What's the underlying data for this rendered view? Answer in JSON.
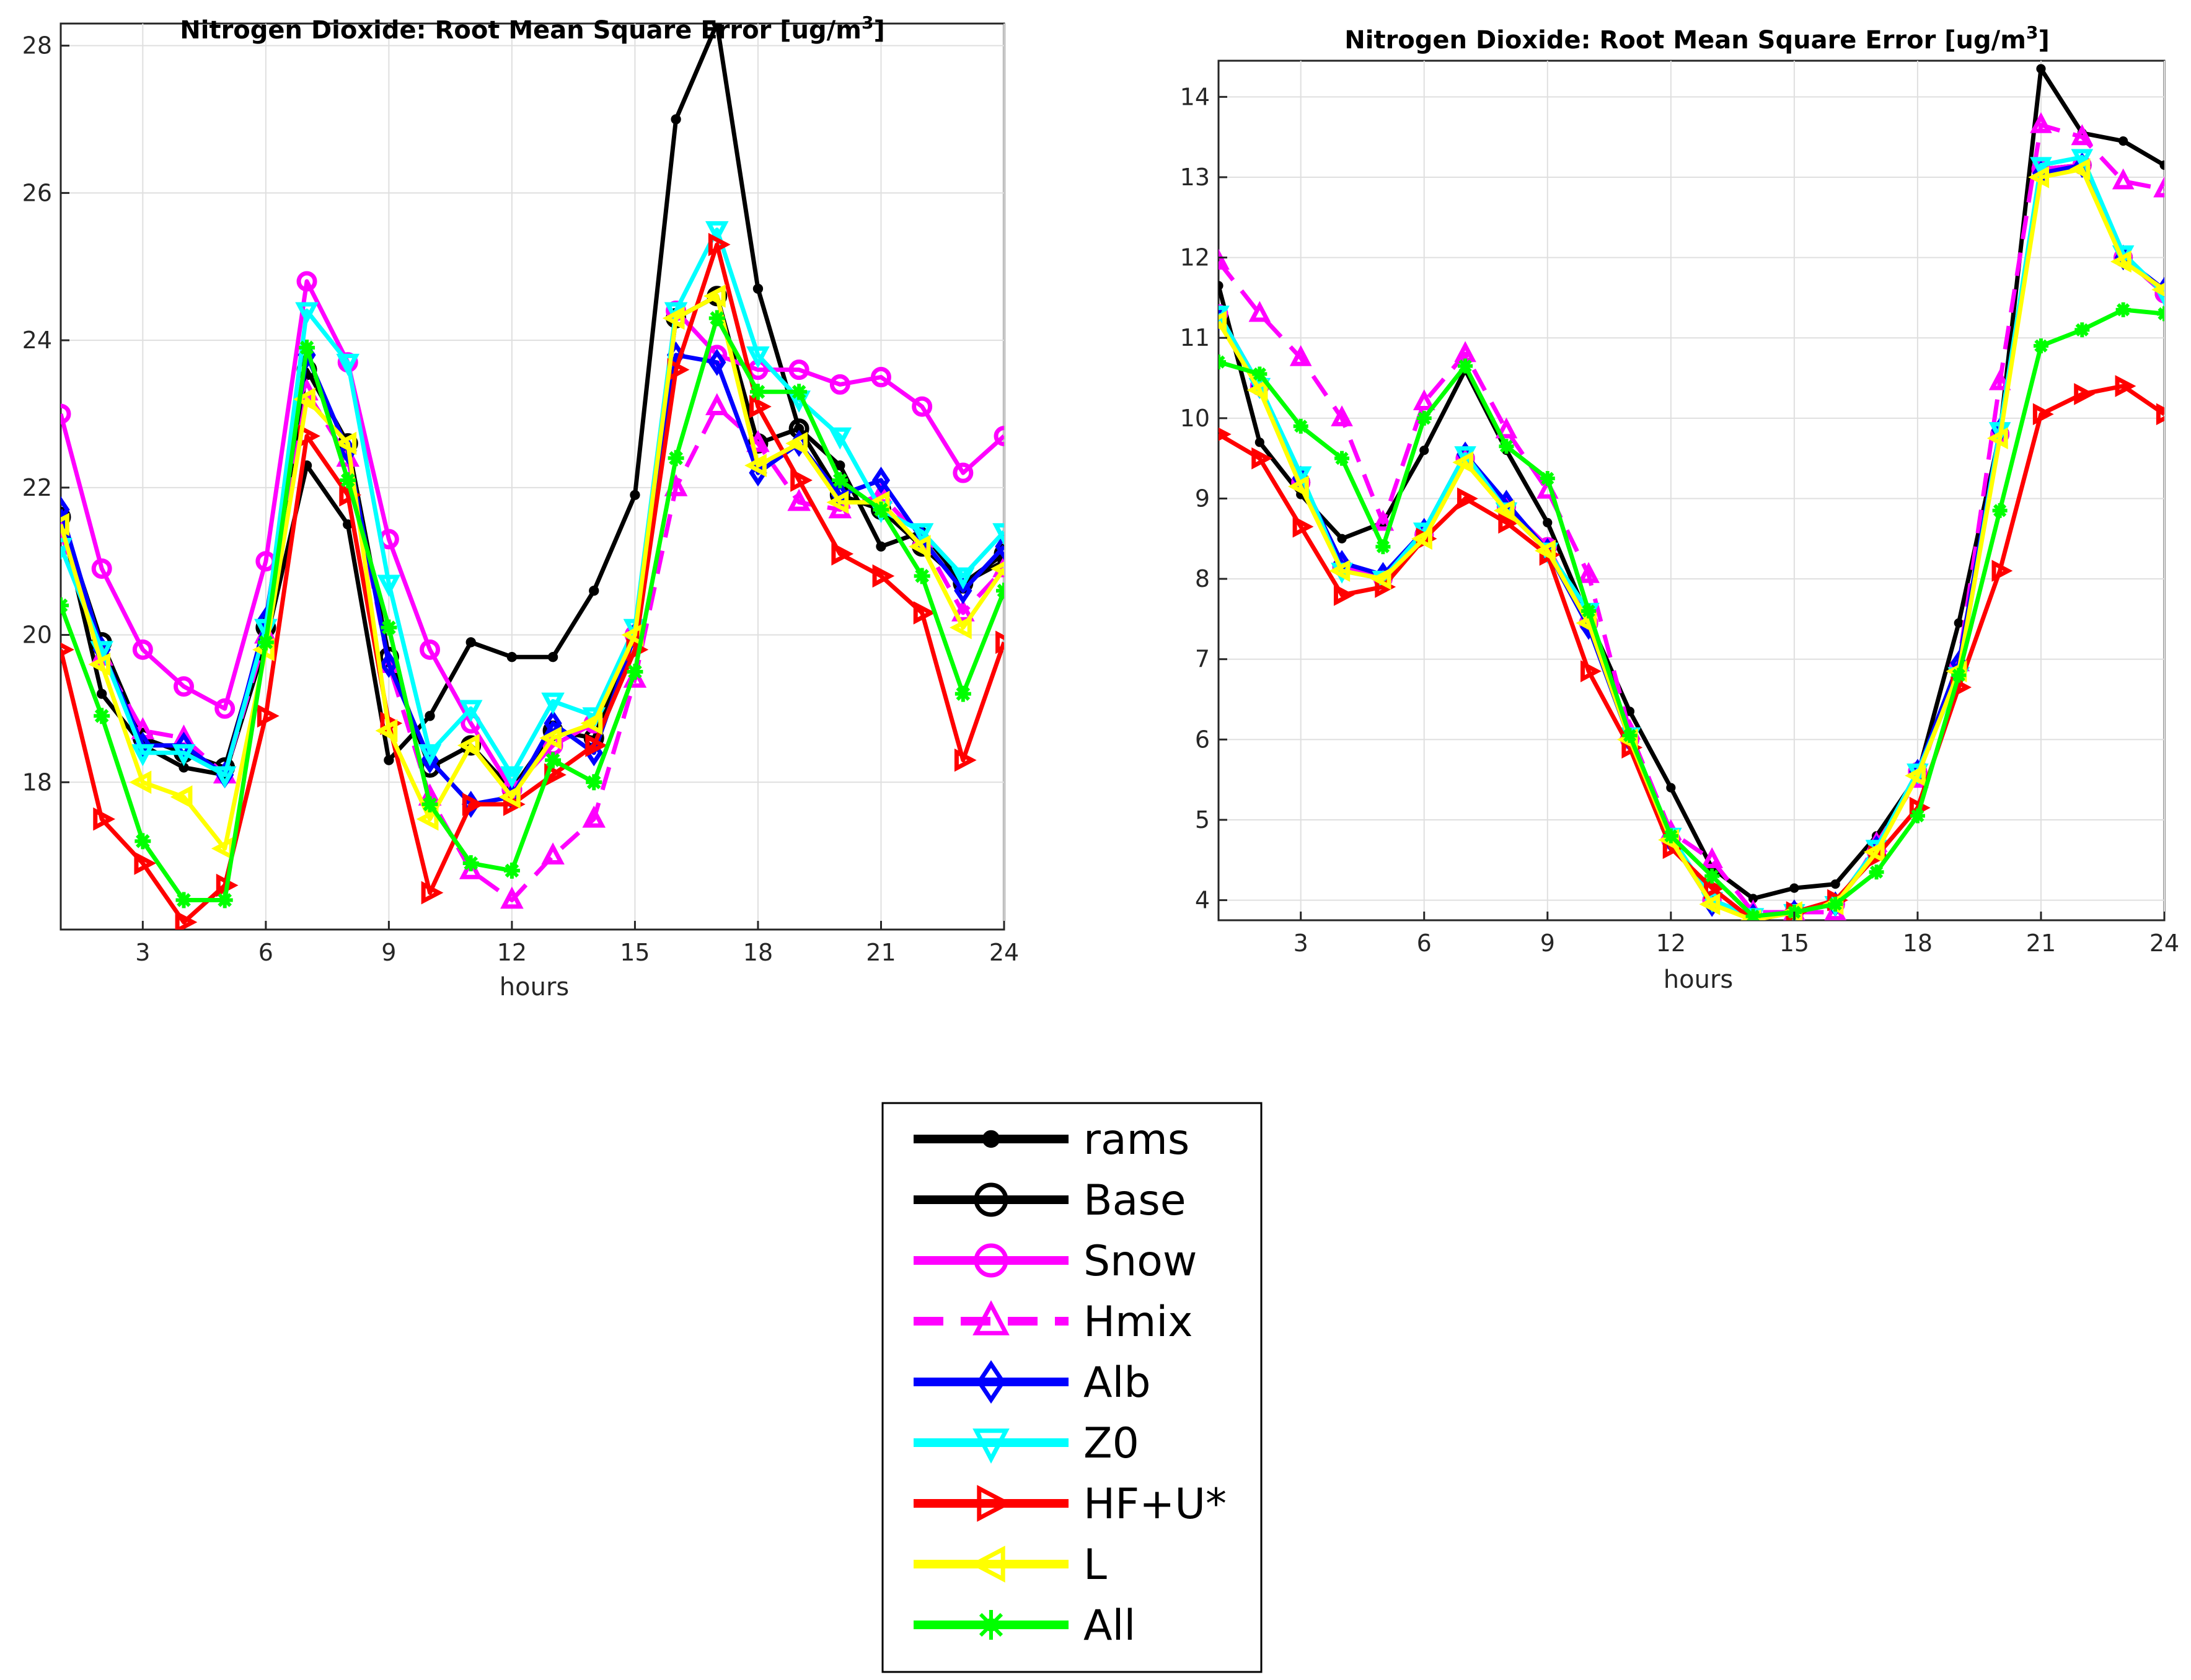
{
  "chart_data": [
    {
      "type": "line",
      "title": "Nitrogen Dioxide: Root Mean Square Error [ug/m",
      "title_superscript": "3",
      "title_suffix": "]",
      "xlabel": "hours",
      "ylabel": "",
      "xlim": [
        1,
        24
      ],
      "ylim": [
        16.0,
        28.3
      ],
      "xticks": [
        3,
        6,
        9,
        12,
        15,
        18,
        21,
        24
      ],
      "yticks": [
        18,
        20,
        22,
        24,
        26,
        28
      ],
      "grid": true,
      "x": [
        1,
        2,
        3,
        4,
        5,
        6,
        7,
        8,
        9,
        10,
        11,
        12,
        13,
        14,
        15,
        16,
        17,
        18,
        19,
        20,
        21,
        22,
        23,
        24
      ],
      "series": [
        {
          "name": "rams",
          "color": "#000000",
          "marker": "dot",
          "dashed": false,
          "values": [
            21.6,
            19.2,
            18.5,
            18.2,
            18.1,
            19.9,
            22.3,
            21.5,
            18.3,
            18.9,
            19.9,
            19.7,
            19.7,
            20.6,
            21.9,
            27.0,
            28.3,
            24.7,
            22.8,
            22.3,
            21.2,
            21.4,
            20.7,
            21.0
          ]
        },
        {
          "name": "Base",
          "color": "#000000",
          "marker": "circle",
          "dashed": false,
          "values": [
            21.6,
            19.9,
            18.6,
            18.4,
            18.2,
            20.1,
            23.6,
            22.6,
            19.7,
            18.2,
            18.5,
            17.9,
            18.7,
            18.6,
            20.0,
            24.3,
            24.6,
            22.6,
            22.8,
            21.9,
            21.7,
            21.2,
            20.7,
            21.1
          ]
        },
        {
          "name": "Snow",
          "color": "#ff00ff",
          "marker": "circle",
          "dashed": false,
          "values": [
            23.0,
            20.9,
            19.8,
            19.3,
            19.0,
            21.0,
            24.8,
            23.7,
            21.3,
            19.8,
            18.8,
            17.9,
            18.5,
            18.8,
            20.0,
            24.4,
            23.8,
            23.6,
            23.6,
            23.4,
            23.5,
            23.1,
            22.2,
            22.7
          ]
        },
        {
          "name": "Hmix",
          "color": "#ff00ff",
          "marker": "triangle-up",
          "dashed": true,
          "values": [
            21.4,
            19.7,
            18.7,
            18.6,
            18.1,
            20.0,
            23.3,
            22.4,
            19.6,
            17.8,
            16.8,
            16.4,
            17.0,
            17.5,
            19.4,
            22.0,
            23.1,
            22.6,
            21.8,
            21.7,
            21.9,
            21.3,
            20.3,
            20.9
          ]
        },
        {
          "name": "Alb",
          "color": "#0000ff",
          "marker": "diamond",
          "dashed": false,
          "values": [
            21.7,
            19.8,
            18.5,
            18.5,
            18.1,
            20.2,
            23.8,
            22.5,
            19.6,
            18.3,
            17.7,
            17.8,
            18.8,
            18.4,
            20.0,
            23.8,
            23.7,
            22.2,
            22.6,
            21.9,
            22.1,
            21.3,
            20.6,
            21.2
          ]
        },
        {
          "name": "Z0",
          "color": "#00ffff",
          "marker": "triangle-down",
          "dashed": false,
          "values": [
            21.2,
            19.8,
            18.4,
            18.4,
            18.1,
            20.1,
            24.4,
            23.7,
            20.7,
            18.4,
            19.0,
            18.1,
            19.1,
            18.9,
            20.1,
            24.4,
            25.5,
            23.8,
            23.2,
            22.7,
            21.7,
            21.4,
            20.8,
            21.4
          ]
        },
        {
          "name": "HF+U*",
          "color": "#ff0000",
          "marker": "triangle-right",
          "dashed": false,
          "values": [
            19.8,
            17.5,
            16.9,
            16.1,
            16.6,
            18.9,
            22.7,
            21.9,
            18.8,
            16.5,
            17.7,
            17.7,
            18.1,
            18.5,
            19.8,
            23.6,
            25.3,
            23.1,
            22.1,
            21.1,
            20.8,
            20.3,
            18.3,
            19.9
          ]
        },
        {
          "name": "L",
          "color": "#ffff00",
          "marker": "triangle-left",
          "dashed": false,
          "values": [
            21.5,
            19.6,
            18.0,
            17.8,
            17.1,
            19.8,
            23.2,
            22.6,
            18.7,
            17.5,
            18.5,
            17.8,
            18.6,
            18.8,
            20.0,
            24.3,
            24.6,
            22.3,
            22.6,
            21.8,
            21.8,
            21.2,
            20.1,
            20.9
          ]
        },
        {
          "name": "All",
          "color": "#00ff00",
          "marker": "asterisk",
          "dashed": false,
          "values": [
            20.4,
            18.9,
            17.2,
            16.4,
            16.4,
            19.9,
            23.9,
            22.1,
            20.1,
            17.7,
            16.9,
            16.8,
            18.3,
            18.0,
            19.5,
            22.4,
            24.3,
            23.3,
            23.3,
            22.1,
            21.7,
            20.8,
            19.2,
            20.6
          ]
        }
      ]
    },
    {
      "type": "line",
      "title": "Nitrogen Dioxide: Root Mean Square Error [ug/m",
      "title_superscript": "3",
      "title_suffix": "]",
      "xlabel": "hours",
      "ylabel": "",
      "xlim": [
        1,
        24
      ],
      "ylim": [
        3.75,
        14.45
      ],
      "xticks": [
        3,
        6,
        9,
        12,
        15,
        18,
        21,
        24
      ],
      "yticks": [
        4,
        5,
        6,
        7,
        8,
        9,
        10,
        11,
        12,
        13,
        14
      ],
      "grid": true,
      "x": [
        1,
        2,
        3,
        4,
        5,
        6,
        7,
        8,
        9,
        10,
        11,
        12,
        13,
        14,
        15,
        16,
        17,
        18,
        19,
        20,
        21,
        22,
        23,
        24
      ],
      "series": [
        {
          "name": "rams",
          "color": "#000000",
          "marker": "dot",
          "dashed": false,
          "values": [
            11.65,
            9.7,
            9.05,
            8.5,
            8.7,
            9.6,
            10.6,
            9.6,
            8.7,
            7.5,
            6.35,
            5.4,
            4.4,
            4.02,
            4.15,
            4.2,
            4.8,
            5.55,
            7.45,
            9.8,
            14.35,
            13.55,
            13.45,
            13.15
          ]
        },
        {
          "name": "Base",
          "color": "#000000",
          "marker": "circle",
          "dashed": false,
          "values": [
            11.3,
            10.4,
            9.2,
            8.15,
            8.0,
            8.55,
            9.5,
            8.9,
            8.4,
            7.45,
            6.0,
            4.75,
            4.0,
            3.8,
            3.85,
            3.95,
            4.6,
            5.6,
            6.9,
            9.8,
            13.1,
            13.15,
            12.0,
            11.55
          ]
        },
        {
          "name": "Snow",
          "color": "#ff00ff",
          "marker": "circle",
          "dashed": false,
          "values": [
            11.3,
            10.4,
            9.2,
            8.15,
            8.0,
            8.55,
            9.5,
            8.9,
            8.4,
            7.45,
            6.0,
            4.75,
            4.0,
            3.8,
            3.85,
            3.95,
            4.6,
            5.6,
            6.9,
            9.8,
            13.1,
            13.15,
            12.0,
            11.55
          ]
        },
        {
          "name": "Hmix",
          "color": "#ff00ff",
          "marker": "triangle-up",
          "dashed": true,
          "values": [
            11.95,
            11.3,
            10.75,
            10.0,
            8.7,
            10.2,
            10.8,
            9.85,
            9.1,
            8.05,
            6.1,
            4.85,
            4.5,
            3.85,
            3.85,
            3.85,
            4.7,
            5.5,
            6.95,
            10.45,
            13.65,
            13.5,
            12.95,
            12.85
          ]
        },
        {
          "name": "Alb",
          "color": "#0000ff",
          "marker": "diamond",
          "dashed": false,
          "values": [
            11.25,
            10.4,
            9.25,
            8.2,
            8.05,
            8.6,
            9.55,
            8.95,
            8.35,
            7.4,
            6.0,
            4.75,
            3.95,
            3.8,
            3.85,
            3.95,
            4.65,
            5.6,
            6.95,
            9.85,
            13.05,
            13.15,
            12.0,
            11.6
          ]
        },
        {
          "name": "Z0",
          "color": "#00ffff",
          "marker": "triangle-down",
          "dashed": false,
          "values": [
            11.3,
            10.4,
            9.3,
            8.1,
            8.0,
            8.6,
            9.55,
            8.85,
            8.35,
            7.6,
            6.05,
            4.8,
            4.0,
            3.8,
            3.85,
            3.95,
            4.65,
            5.6,
            6.8,
            9.85,
            13.15,
            13.25,
            12.05,
            11.55
          ]
        },
        {
          "name": "HF+U*",
          "color": "#ff0000",
          "marker": "triangle-right",
          "dashed": false,
          "values": [
            9.8,
            9.5,
            8.65,
            7.8,
            7.9,
            8.5,
            9.0,
            8.7,
            8.3,
            6.85,
            5.9,
            4.65,
            4.15,
            3.75,
            3.85,
            4.0,
            4.55,
            5.15,
            6.65,
            8.1,
            10.05,
            10.3,
            10.4,
            10.05
          ]
        },
        {
          "name": "L",
          "color": "#ffff00",
          "marker": "triangle-left",
          "dashed": false,
          "values": [
            11.2,
            10.35,
            9.15,
            8.1,
            8.0,
            8.5,
            9.45,
            8.85,
            8.35,
            7.45,
            6.0,
            4.75,
            3.95,
            3.75,
            3.85,
            3.95,
            4.6,
            5.55,
            6.85,
            9.75,
            13.0,
            13.1,
            11.95,
            11.6
          ]
        },
        {
          "name": "All",
          "color": "#00ff00",
          "marker": "asterisk",
          "dashed": false,
          "values": [
            10.7,
            10.55,
            9.9,
            9.5,
            8.4,
            10.0,
            10.65,
            9.65,
            9.25,
            7.6,
            6.05,
            4.8,
            4.3,
            3.8,
            3.85,
            3.95,
            4.35,
            5.05,
            6.8,
            8.85,
            10.9,
            11.1,
            11.35,
            11.3
          ]
        }
      ]
    }
  ]
}
